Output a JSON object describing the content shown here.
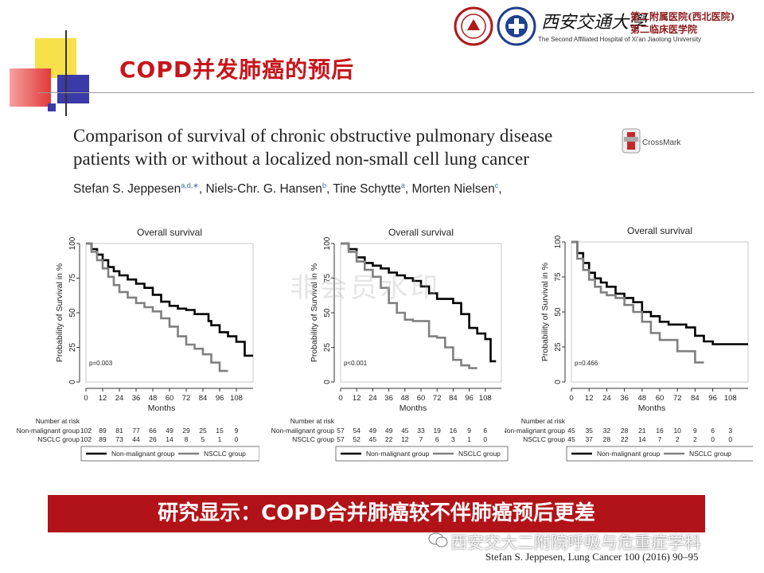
{
  "slide": {
    "title": "COPD并发肺癌的预后",
    "banner": "研究显示：COPD合并肺癌较不伴肺癌预后更差",
    "citation": "Stefan S. Jeppesen, Lung Cancer 100 (2016) 90–95",
    "wechat_source": "西安交大二附院呼吸与危重症学科",
    "watermark": "非会员水印"
  },
  "header": {
    "hospital_script": "西安交通大學",
    "hospital_cn_1": "第二附属医院(西北医院)",
    "hospital_cn_2": "第二临床医学院",
    "hospital_en": "The Second Affiliated Hospital of Xi'an Jiaotong University"
  },
  "paper": {
    "title": "Comparison of survival of chronic obstructive pulmonary disease patients with or without a localized non-small cell lung cancer",
    "crossmark": "CrossMark",
    "authors": [
      {
        "name": "Stefan S. Jeppesen",
        "sup": "a,d,∗",
        "sep": ", "
      },
      {
        "name": "Niels-Chr. G. Hansen",
        "sup": "b",
        "sep": ", "
      },
      {
        "name": "Tine Schytte",
        "sup": "a",
        "sep": ", "
      },
      {
        "name": "Morten Nielsen",
        "sup": "c",
        "sep": ","
      }
    ]
  },
  "colors": {
    "brand_red": "#c8141b",
    "banner_red": "#b21318",
    "non_malignant": "#000000",
    "nsclc": "#808080"
  },
  "chart_data": [
    {
      "type": "line",
      "title": "Overall survival",
      "xlabel": "Months",
      "ylabel": "Probability of Survival in %",
      "xticks": [
        0,
        12,
        24,
        36,
        48,
        60,
        72,
        84,
        96,
        108
      ],
      "yticks": [
        0,
        25,
        50,
        75,
        100
      ],
      "xlim": [
        0,
        120
      ],
      "ylim": [
        0,
        100
      ],
      "annotation": "p=0.003",
      "legend": [
        "Non-malignant group",
        "NSCLC group"
      ],
      "risk_title": "Number at risk",
      "risk_table": [
        {
          "label": "Non-malignant group",
          "values": [
            "102",
            "89",
            "81",
            "77",
            "66",
            "49",
            "29",
            "25",
            "15",
            "9"
          ]
        },
        {
          "label": "NSCLC group",
          "values": [
            "102",
            "89",
            "73",
            "44",
            "26",
            "14",
            "8",
            "5",
            "1",
            "0"
          ]
        }
      ],
      "series": [
        {
          "name": "Non-malignant group",
          "x": [
            0,
            4,
            8,
            12,
            16,
            20,
            24,
            30,
            36,
            42,
            48,
            54,
            60,
            66,
            72,
            78,
            84,
            88,
            90,
            96,
            102,
            108,
            114,
            120
          ],
          "y": [
            100,
            96,
            92,
            88,
            83,
            80,
            77,
            74,
            71,
            68,
            63,
            58,
            55,
            53,
            52,
            49,
            49,
            44,
            41,
            36,
            33,
            29,
            19,
            19
          ]
        },
        {
          "name": "NSCLC group",
          "x": [
            0,
            4,
            8,
            12,
            16,
            20,
            24,
            30,
            36,
            42,
            48,
            54,
            60,
            66,
            72,
            78,
            84,
            90,
            96,
            102
          ],
          "y": [
            100,
            94,
            88,
            82,
            76,
            70,
            65,
            61,
            57,
            54,
            51,
            46,
            40,
            33,
            27,
            24,
            20,
            14,
            8,
            8
          ]
        }
      ]
    },
    {
      "type": "line",
      "title": "Overall survival",
      "xlabel": "Months",
      "ylabel": "Probability of Survival in %",
      "xticks": [
        0,
        12,
        24,
        36,
        48,
        60,
        72,
        84,
        96,
        108
      ],
      "yticks": [
        0,
        25,
        50,
        75,
        100
      ],
      "xlim": [
        0,
        120
      ],
      "ylim": [
        0,
        100
      ],
      "annotation": "p<0.001",
      "legend": [
        "Non-malignant group",
        "NSCLC group"
      ],
      "risk_title": "Number at risk",
      "risk_table": [
        {
          "label": "Non-malignant group",
          "values": [
            "57",
            "54",
            "49",
            "49",
            "45",
            "33",
            "19",
            "16",
            "9",
            "6"
          ]
        },
        {
          "label": "NSCLC group",
          "values": [
            "57",
            "52",
            "45",
            "22",
            "12",
            "7",
            "6",
            "3",
            "1",
            "0"
          ]
        }
      ],
      "series": [
        {
          "name": "Non-malignant group",
          "x": [
            0,
            6,
            12,
            18,
            24,
            30,
            36,
            42,
            48,
            54,
            60,
            66,
            72,
            78,
            84,
            90,
            96,
            102,
            108,
            112,
            116
          ],
          "y": [
            100,
            96,
            90,
            86,
            84,
            82,
            79,
            77,
            75,
            73,
            69,
            64,
            60,
            60,
            57,
            49,
            39,
            35,
            31,
            15,
            15
          ]
        },
        {
          "name": "NSCLC group",
          "x": [
            0,
            6,
            12,
            18,
            24,
            30,
            36,
            42,
            48,
            54,
            60,
            66,
            72,
            78,
            84,
            90,
            96,
            102
          ],
          "y": [
            100,
            94,
            87,
            81,
            76,
            68,
            57,
            50,
            45,
            44,
            44,
            33,
            32,
            25,
            16,
            12,
            10,
            10
          ]
        }
      ]
    },
    {
      "type": "line",
      "title": "Overall survival",
      "xlabel": "Months",
      "ylabel": "Probability of Survival in %",
      "xticks": [
        0,
        12,
        24,
        36,
        48,
        60,
        72,
        84,
        96,
        108
      ],
      "yticks": [
        0,
        25,
        50,
        75,
        100
      ],
      "xlim": [
        0,
        120
      ],
      "ylim": [
        0,
        100
      ],
      "annotation": "p=0.466",
      "legend": [
        "Non-malignant group",
        "NSCLC group"
      ],
      "risk_title": "Number at risk",
      "risk_table": [
        {
          "label": "Non-malignant group",
          "values": [
            "45",
            "35",
            "32",
            "28",
            "21",
            "16",
            "10",
            "9",
            "6",
            "3"
          ]
        },
        {
          "label": "NSCLC group",
          "values": [
            "45",
            "37",
            "28",
            "22",
            "14",
            "7",
            "2",
            "2",
            "0",
            "0"
          ]
        }
      ],
      "series": [
        {
          "name": "Non-malignant group",
          "x": [
            0,
            4,
            8,
            12,
            16,
            20,
            24,
            30,
            36,
            42,
            48,
            54,
            60,
            66,
            72,
            78,
            84,
            90,
            96,
            102,
            108,
            114,
            120
          ],
          "y": [
            100,
            92,
            85,
            78,
            74,
            71,
            68,
            63,
            60,
            57,
            50,
            47,
            43,
            41,
            41,
            39,
            33,
            29,
            27,
            27,
            27,
            27,
            27
          ]
        },
        {
          "name": "NSCLC group",
          "x": [
            0,
            4,
            8,
            12,
            16,
            20,
            24,
            30,
            36,
            42,
            48,
            54,
            60,
            66,
            72,
            78,
            84,
            90
          ],
          "y": [
            100,
            88,
            80,
            73,
            68,
            64,
            62,
            60,
            55,
            50,
            43,
            35,
            30,
            30,
            22,
            22,
            14,
            14
          ]
        }
      ]
    }
  ]
}
